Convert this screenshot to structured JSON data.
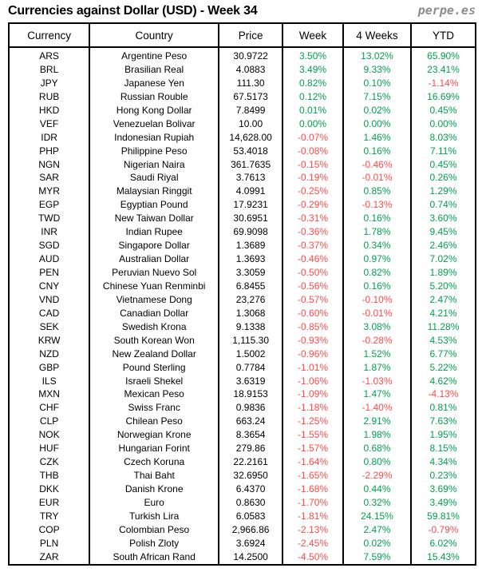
{
  "page": {
    "title": "Currencies against Dollar (USD) - Week 34",
    "brand": "perpe.es"
  },
  "colors": {
    "positive": "#00a050",
    "negative": "#ff4a4a",
    "text": "#000000",
    "brand_gray": "#8c8c8c",
    "border": "#000000"
  },
  "table": {
    "headers": [
      "Currency",
      "Country",
      "Price",
      "Week",
      "4 Weeks",
      "YTD"
    ],
    "rows": [
      {
        "currency": "ARS",
        "country": "Argentine Peso",
        "price": "30.9722",
        "week": "3.50%",
        "four_weeks": "13.02%",
        "ytd": "65.90%"
      },
      {
        "currency": "BRL",
        "country": "Brasilian Real",
        "price": "4.0883",
        "week": "3.49%",
        "four_weeks": "9.33%",
        "ytd": "23.41%"
      },
      {
        "currency": "JPY",
        "country": "Japanese Yen",
        "price": "111.30",
        "week": "0.82%",
        "four_weeks": "0.10%",
        "ytd": "-1.14%"
      },
      {
        "currency": "RUB",
        "country": "Russian Rouble",
        "price": "67.5173",
        "week": "0.12%",
        "four_weeks": "7.15%",
        "ytd": "16.69%"
      },
      {
        "currency": "HKD",
        "country": "Hong Kong Dollar",
        "price": "7.8499",
        "week": "0.01%",
        "four_weeks": "0.02%",
        "ytd": "0.45%"
      },
      {
        "currency": "VEF",
        "country": "Venezuelan Bolivar",
        "price": "10.00",
        "week": "0.00%",
        "four_weeks": "0.00%",
        "ytd": "0.00%"
      },
      {
        "currency": "IDR",
        "country": "Indonesian Rupiah",
        "price": "14,628.00",
        "week": "-0.07%",
        "four_weeks": "1.46%",
        "ytd": "8.03%"
      },
      {
        "currency": "PHP",
        "country": "Philippine Peso",
        "price": "53.4018",
        "week": "-0.08%",
        "four_weeks": "0.16%",
        "ytd": "7.11%"
      },
      {
        "currency": "NGN",
        "country": "Nigerian Naira",
        "price": "361.7635",
        "week": "-0.15%",
        "four_weeks": "-0.46%",
        "ytd": "0.45%"
      },
      {
        "currency": "SAR",
        "country": "Saudi Riyal",
        "price": "3.7613",
        "week": "-0.19%",
        "four_weeks": "-0.01%",
        "ytd": "0.26%"
      },
      {
        "currency": "MYR",
        "country": "Malaysian Ringgit",
        "price": "4.0991",
        "week": "-0.25%",
        "four_weeks": "0.85%",
        "ytd": "1.29%"
      },
      {
        "currency": "EGP",
        "country": "Egyptian Pound",
        "price": "17.9231",
        "week": "-0.29%",
        "four_weeks": "-0.13%",
        "ytd": "0.74%"
      },
      {
        "currency": "TWD",
        "country": "New Taiwan Dollar",
        "price": "30.6951",
        "week": "-0.31%",
        "four_weeks": "0.16%",
        "ytd": "3.60%"
      },
      {
        "currency": "INR",
        "country": "Indian Rupee",
        "price": "69.9098",
        "week": "-0.36%",
        "four_weeks": "1.78%",
        "ytd": "9.45%"
      },
      {
        "currency": "SGD",
        "country": "Singapore Dollar",
        "price": "1.3689",
        "week": "-0.37%",
        "four_weeks": "0.34%",
        "ytd": "2.46%"
      },
      {
        "currency": "AUD",
        "country": "Australian Dollar",
        "price": "1.3693",
        "week": "-0.46%",
        "four_weeks": "0.97%",
        "ytd": "7.02%"
      },
      {
        "currency": "PEN",
        "country": "Peruvian Nuevo Sol",
        "price": "3.3059",
        "week": "-0.50%",
        "four_weeks": "0.82%",
        "ytd": "1.89%"
      },
      {
        "currency": "CNY",
        "country": "Chinese Yuan Renminbi",
        "price": "6.8455",
        "week": "-0.56%",
        "four_weeks": "0.16%",
        "ytd": "5.20%"
      },
      {
        "currency": "VND",
        "country": "Vietnamese Dong",
        "price": "23,276",
        "week": "-0.57%",
        "four_weeks": "-0.10%",
        "ytd": "2.47%"
      },
      {
        "currency": "CAD",
        "country": "Canadian Dollar",
        "price": "1.3068",
        "week": "-0.60%",
        "four_weeks": "-0.01%",
        "ytd": "4.21%"
      },
      {
        "currency": "SEK",
        "country": "Swedish Krona",
        "price": "9.1338",
        "week": "-0.85%",
        "four_weeks": "3.08%",
        "ytd": "11.28%"
      },
      {
        "currency": "KRW",
        "country": "South Korean Won",
        "price": "1,115.30",
        "week": "-0.93%",
        "four_weeks": "-0.28%",
        "ytd": "4.53%"
      },
      {
        "currency": "NZD",
        "country": "New Zealand Dollar",
        "price": "1.5002",
        "week": "-0.96%",
        "four_weeks": "1.52%",
        "ytd": "6.77%"
      },
      {
        "currency": "GBP",
        "country": "Pound Sterling",
        "price": "0.7784",
        "week": "-1.01%",
        "four_weeks": "1.87%",
        "ytd": "5.22%"
      },
      {
        "currency": "ILS",
        "country": "Israeli Shekel",
        "price": "3.6319",
        "week": "-1.06%",
        "four_weeks": "-1.03%",
        "ytd": "4.62%"
      },
      {
        "currency": "MXN",
        "country": "Mexican Peso",
        "price": "18.9153",
        "week": "-1.09%",
        "four_weeks": "1.47%",
        "ytd": "-4.13%"
      },
      {
        "currency": "CHF",
        "country": "Swiss Franc",
        "price": "0.9836",
        "week": "-1.18%",
        "four_weeks": "-1.40%",
        "ytd": "0.81%"
      },
      {
        "currency": "CLP",
        "country": "Chilean Peso",
        "price": "663.24",
        "week": "-1.25%",
        "four_weeks": "2.91%",
        "ytd": "7.63%"
      },
      {
        "currency": "NOK",
        "country": "Norwegian Krone",
        "price": "8.3654",
        "week": "-1.55%",
        "four_weeks": "1.98%",
        "ytd": "1.95%"
      },
      {
        "currency": "HUF",
        "country": "Hungarian Forint",
        "price": "279.86",
        "week": "-1.57%",
        "four_weeks": "0.68%",
        "ytd": "8.15%"
      },
      {
        "currency": "CZK",
        "country": "Czech Koruna",
        "price": "22.2161",
        "week": "-1.64%",
        "four_weeks": "0.80%",
        "ytd": "4.34%"
      },
      {
        "currency": "THB",
        "country": "Thai Baht",
        "price": "32.6950",
        "week": "-1.65%",
        "four_weeks": "-2.29%",
        "ytd": "0.23%"
      },
      {
        "currency": "DKK",
        "country": "Danish Krone",
        "price": "6.4370",
        "week": "-1.68%",
        "four_weeks": "0.44%",
        "ytd": "3.69%"
      },
      {
        "currency": "EUR",
        "country": "Euro",
        "price": "0.8630",
        "week": "-1.70%",
        "four_weeks": "0.32%",
        "ytd": "3.49%"
      },
      {
        "currency": "TRY",
        "country": "Turkish Lira",
        "price": "6.0583",
        "week": "-1.81%",
        "four_weeks": "24.15%",
        "ytd": "59.81%"
      },
      {
        "currency": "COP",
        "country": "Colombian Peso",
        "price": "2,966.86",
        "week": "-2.13%",
        "four_weeks": "2.47%",
        "ytd": "-0.79%"
      },
      {
        "currency": "PLN",
        "country": "Polish Zloty",
        "price": "3.6924",
        "week": "-2.45%",
        "four_weeks": "0.02%",
        "ytd": "6.02%"
      },
      {
        "currency": "ZAR",
        "country": "South African Rand",
        "price": "14.2500",
        "week": "-4.50%",
        "four_weeks": "7.59%",
        "ytd": "15.43%"
      }
    ]
  }
}
